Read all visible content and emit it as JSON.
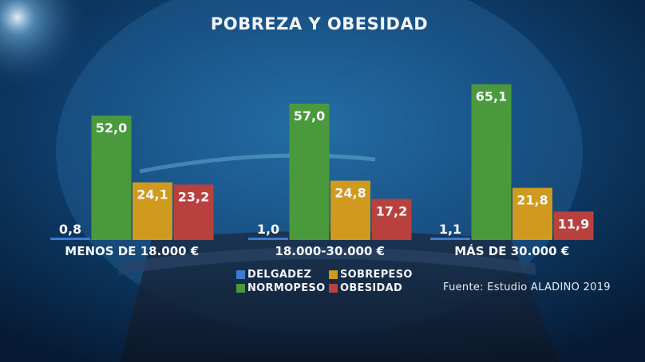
{
  "chart_data": {
    "type": "bar",
    "title": "POBREZA Y OBESIDAD",
    "categories": [
      "MENOS DE 18.000 €",
      "18.000-30.000 €",
      "MÁS DE 30.000 €"
    ],
    "series": [
      {
        "name": "DELGADEZ",
        "color": "#3d7bd0",
        "values": [
          0.8,
          1.0,
          1.1
        ],
        "labels": [
          "0,8",
          "1,0",
          "1,1"
        ]
      },
      {
        "name": "NORMOPESO",
        "color": "#4a9a3d",
        "values": [
          52.0,
          57.0,
          65.1
        ],
        "labels": [
          "52,0",
          "57,0",
          "65,1"
        ]
      },
      {
        "name": "SOBREPESO",
        "color": "#cf9a1e",
        "values": [
          24.1,
          24.8,
          21.8
        ],
        "labels": [
          "24,1",
          "24,8",
          "21,8"
        ]
      },
      {
        "name": "OBESIDAD",
        "color": "#b8413e",
        "values": [
          23.2,
          17.2,
          11.9
        ],
        "labels": [
          "23,2",
          "17,2",
          "11,9"
        ]
      }
    ],
    "legend_placement": "bottom-center",
    "grid": false
  },
  "source": "Fuente: Estudio ALADINO 2019"
}
